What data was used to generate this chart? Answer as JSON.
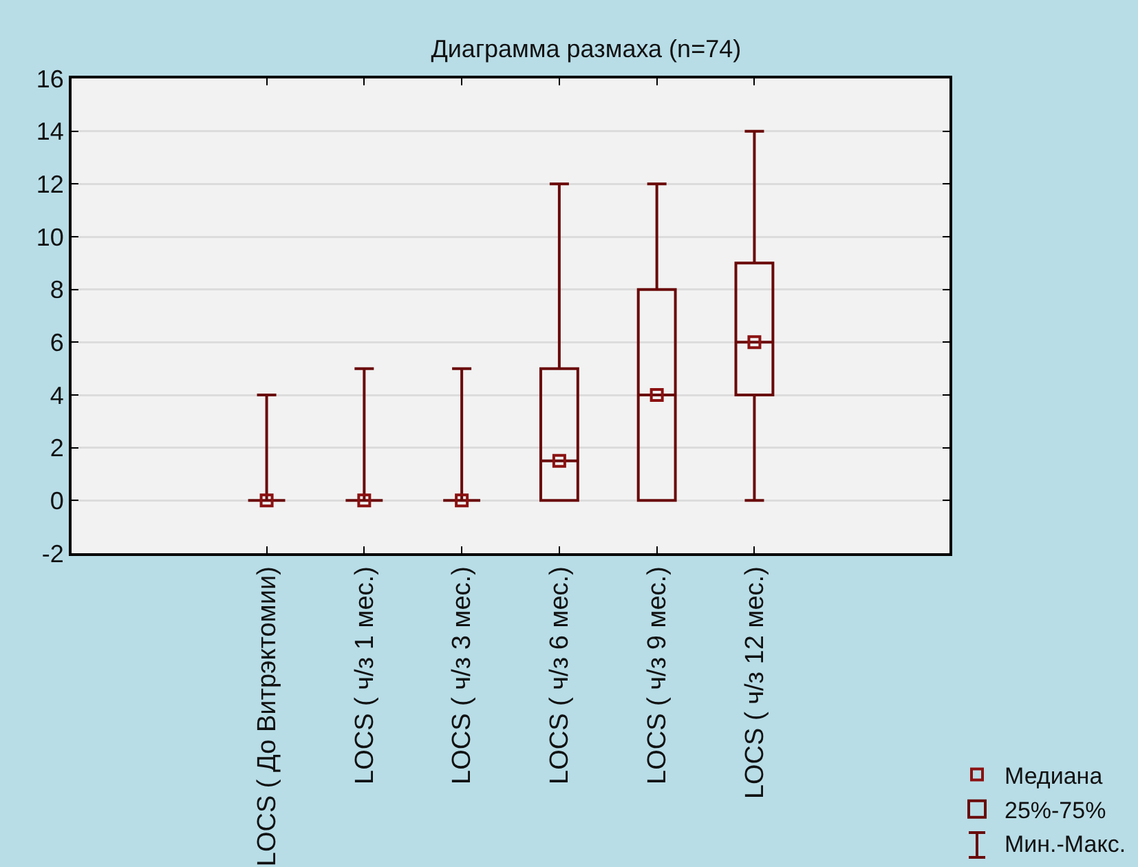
{
  "chart_data": {
    "type": "box",
    "title": "Диаграмма размаха (n=74)",
    "categories": [
      "LOCS ( До Витрэктомии)",
      "LOCS ( ч/з 1 мес.)",
      "LOCS ( ч/з 3 мес.)",
      "LOCS ( ч/з 6 мес.)",
      "LOCS ( ч/з 9 мес.)",
      "LOCS ( ч/з 12 мес.)"
    ],
    "series": [
      {
        "name": "Медиана",
        "type": "scatter",
        "color": "#8b1111",
        "values": [
          0,
          0,
          0,
          1.5,
          4,
          6
        ]
      },
      {
        "name": "25%-75%",
        "color": "#6a0808",
        "boxes": [
          {
            "low": 0,
            "q1": 0,
            "median": 0,
            "q3": 0,
            "high": 4
          },
          {
            "low": 0,
            "q1": 0,
            "median": 0,
            "q3": 0,
            "high": 5
          },
          {
            "low": 0,
            "q1": 0,
            "median": 0,
            "q3": 0,
            "high": 5
          },
          {
            "low": 0,
            "q1": 0,
            "median": 1.5,
            "q3": 5,
            "high": 12
          },
          {
            "low": 0,
            "q1": 0,
            "median": 4,
            "q3": 8,
            "high": 12
          },
          {
            "low": 0,
            "q1": 4,
            "median": 6,
            "q3": 9,
            "high": 14
          }
        ]
      }
    ],
    "marker": "square",
    "ylim": [
      -2,
      16
    ],
    "yticks": [
      -2,
      0,
      2,
      4,
      6,
      8,
      10,
      12,
      14,
      16
    ],
    "grid": "y",
    "legend": "bottom right",
    "annotations": [
      "Мин.-Макс."
    ]
  }
}
